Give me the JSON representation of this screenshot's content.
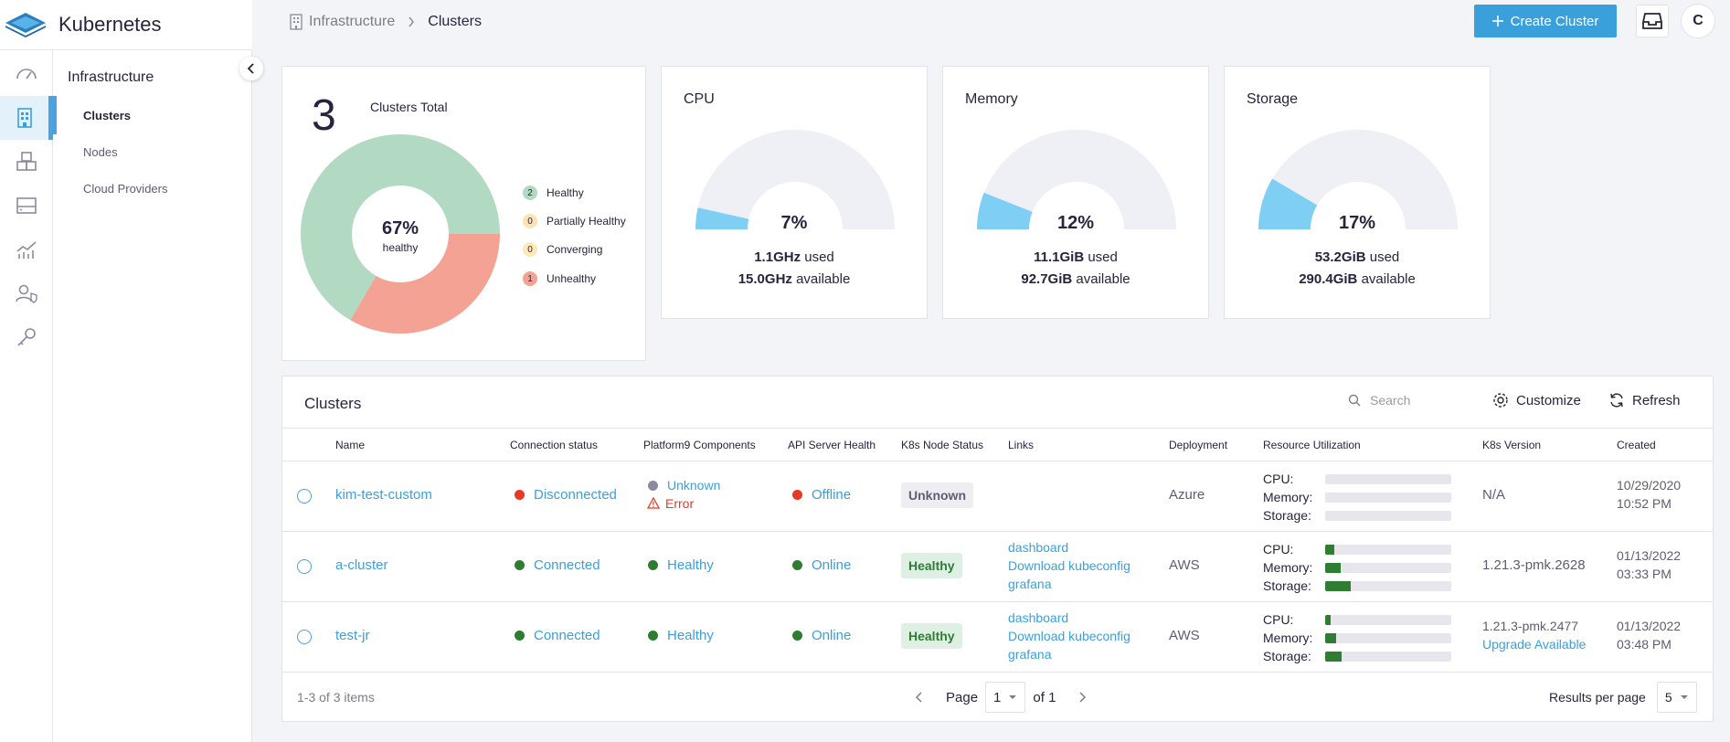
{
  "app": {
    "name": "Kubernetes"
  },
  "colors": {
    "accent": "#3aa0dc",
    "healthy": "#b2d9c2",
    "unhealthy": "#f4a293",
    "partially": "#fbe3b5",
    "converging": "#fde8b8",
    "online": "#2e7d32",
    "error": "#e53a26",
    "gauge_fill": "#7ecff3",
    "gauge_bg": "#eff0f6"
  },
  "sidebar": {
    "rail": [
      "dashboard-icon",
      "clusters-icon",
      "apps-icon",
      "storage-icon",
      "analytics-icon",
      "users-icon",
      "keys-icon"
    ],
    "section_title": "Infrastructure",
    "items": [
      {
        "label": "Clusters"
      },
      {
        "label": "Nodes"
      },
      {
        "label": "Cloud Providers"
      }
    ]
  },
  "header": {
    "breadcrumb": {
      "root": "Infrastructure",
      "current": "Clusters"
    },
    "create_button": "Create Cluster",
    "avatar": "C"
  },
  "summary": {
    "count": "3",
    "count_label": "Clusters Total",
    "center_pct": "67%",
    "center_label": "healthy",
    "legend": [
      {
        "count": "2",
        "label": "Healthy"
      },
      {
        "count": "0",
        "label": "Partially Healthy"
      },
      {
        "count": "0",
        "label": "Converging"
      },
      {
        "count": "1",
        "label": "Unhealthy"
      }
    ],
    "donut_values": {
      "healthy": 2,
      "unhealthy": 1
    }
  },
  "gauges": [
    {
      "title": "CPU",
      "percent": "7%",
      "fraction": 0.07,
      "used": "1.1GHz",
      "used_label": "used",
      "available": "15.0GHz",
      "available_label": "available"
    },
    {
      "title": "Memory",
      "percent": "12%",
      "fraction": 0.12,
      "used": "11.1GiB",
      "used_label": "used",
      "available": "92.7GiB",
      "available_label": "available"
    },
    {
      "title": "Storage",
      "percent": "17%",
      "fraction": 0.17,
      "used": "53.2GiB",
      "used_label": "used",
      "available": "290.4GiB",
      "available_label": "available"
    }
  ],
  "table": {
    "title": "Clusters",
    "search_placeholder": "Search",
    "customize": "Customize",
    "refresh": "Refresh",
    "columns": [
      "Name",
      "Connection status",
      "Platform9 Components",
      "API Server Health",
      "K8s Node Status",
      "Links",
      "Deployment",
      "Resource Utilization",
      "K8s Version",
      "Created"
    ],
    "resource_labels": {
      "cpu": "CPU:",
      "memory": "Memory:",
      "storage": "Storage:"
    },
    "rows": [
      {
        "name": "kim-test-custom",
        "connection": "Disconnected",
        "pf9_1": "Unknown",
        "pf9_2": "Error",
        "api": "Offline",
        "node_status": "Unknown",
        "links": [
          "",
          "",
          ""
        ],
        "deployment": "Azure",
        "cpu": 0,
        "memory": 0,
        "storage": 0,
        "version": "N/A",
        "version_link": "",
        "created_date": "10/29/2020",
        "created_time": "10:52 PM"
      },
      {
        "name": "a-cluster",
        "connection": "Connected",
        "pf9_1": "Healthy",
        "pf9_2": "",
        "api": "Online",
        "node_status": "Healthy",
        "links": [
          "dashboard",
          "Download kubeconfig",
          "grafana"
        ],
        "deployment": "AWS",
        "cpu": 0.07,
        "memory": 0.12,
        "storage": 0.2,
        "version": "1.21.3-pmk.2628",
        "version_link": "",
        "created_date": "01/13/2022",
        "created_time": "03:33 PM"
      },
      {
        "name": "test-jr",
        "connection": "Connected",
        "pf9_1": "Healthy",
        "pf9_2": "",
        "api": "Online",
        "node_status": "Healthy",
        "links": [
          "dashboard",
          "Download kubeconfig",
          "grafana"
        ],
        "deployment": "AWS",
        "cpu": 0.04,
        "memory": 0.09,
        "storage": 0.13,
        "version": "1.21.3-pmk.2477",
        "version_link": "Upgrade Available",
        "created_date": "01/13/2022",
        "created_time": "03:48 PM"
      }
    ],
    "footer": {
      "items": "1-3 of 3 items",
      "page_label": "Page",
      "page": "1",
      "of": "of 1",
      "rpp_label": "Results per page",
      "rpp": "5"
    }
  }
}
